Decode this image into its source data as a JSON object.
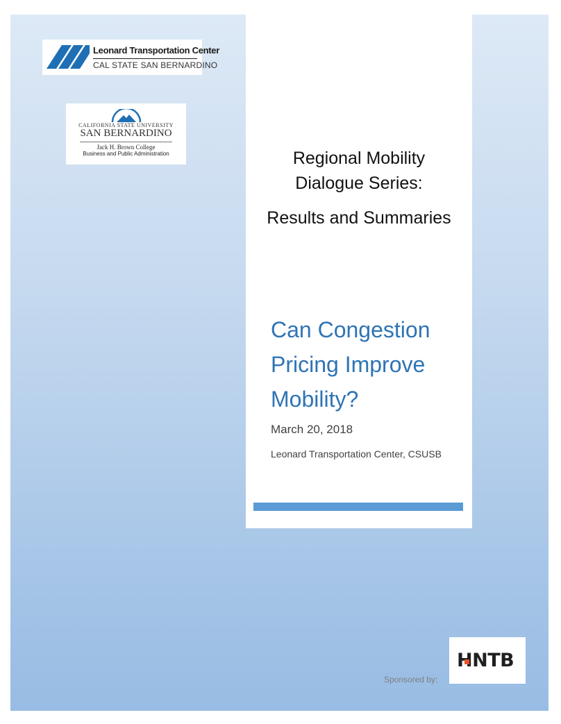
{
  "logos": {
    "ltc": {
      "name": "Leonard Transportation Center",
      "campus": "CAL STATE SAN BERNARDINO",
      "icon": "road-stripes-logo"
    },
    "csusb": {
      "university": "CALIFORNIA STATE UNIVERSITY",
      "campus": "SAN BERNARDINO",
      "college": "Jack H. Brown College",
      "department": "Business and Public Administration",
      "icon": "mountain-arc-logo"
    },
    "sponsor": {
      "label": "Sponsored by:",
      "name": "HNTB"
    }
  },
  "cover": {
    "series_line1": "Regional Mobility",
    "series_line2": "Dialogue Series:",
    "series_line3": "Results and Summaries",
    "title_line1": "Can Congestion",
    "title_line2": "Pricing Improve",
    "title_line3": "Mobility?",
    "date": "March 20, 2018",
    "organization": "Leonard Transportation Center, CSUSB"
  },
  "colors": {
    "title_blue": "#2e74b5",
    "accent_bar": "#5b9bd5",
    "logo_blue": "#1f6fb5",
    "hntb_orange": "#e8532e"
  }
}
